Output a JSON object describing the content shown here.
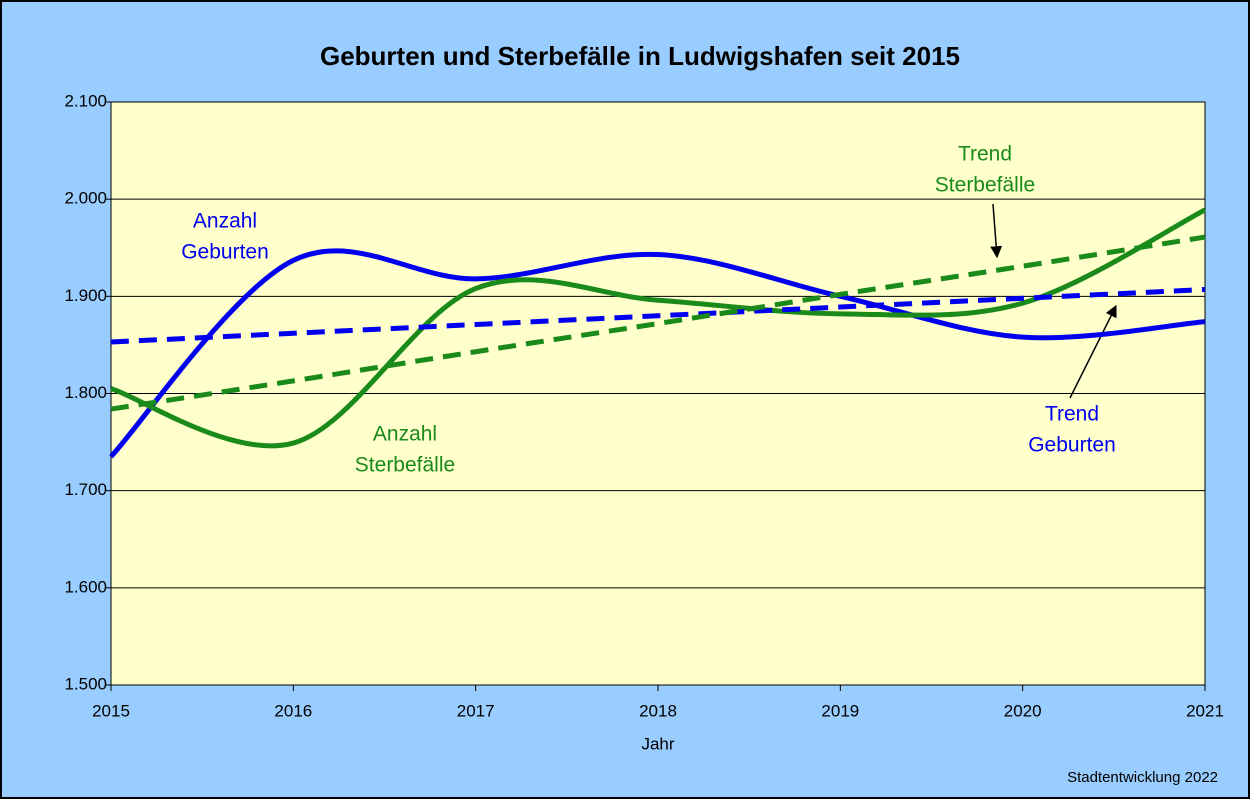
{
  "chart_data": {
    "type": "line",
    "title": "Geburten und Sterbefälle in Ludwigshafen seit 2015",
    "x_label": "Jahr",
    "source": "Stadtentwicklung 2022",
    "x": [
      2015,
      2016,
      2017,
      2018,
      2019,
      2020,
      2021
    ],
    "xlim": [
      2015,
      2021
    ],
    "xticks": [
      2015,
      2016,
      2017,
      2018,
      2019,
      2020,
      2021
    ],
    "ylim": [
      1500,
      2100
    ],
    "yticks": [
      {
        "value": 1500,
        "label": "1.500"
      },
      {
        "value": 1600,
        "label": "1.600"
      },
      {
        "value": 1700,
        "label": "1.700"
      },
      {
        "value": 1800,
        "label": "1.800"
      },
      {
        "value": 1900,
        "label": "1.900"
      },
      {
        "value": 2000,
        "label": "2.000"
      },
      {
        "value": 2100,
        "label": "2.100"
      }
    ],
    "grid": true,
    "series": [
      {
        "name": "Anzahl Geburten",
        "color": "#0000ee",
        "style": "solid",
        "values": [
          1735,
          1937,
          1918,
          1943,
          1900,
          1858,
          1874
        ]
      },
      {
        "name": "Anzahl Sterbefälle",
        "color": "#1a8a1a",
        "style": "solid",
        "values": [
          1805,
          1749,
          1908,
          1896,
          1882,
          1893,
          1989
        ]
      },
      {
        "name": "Trend Geburten",
        "color": "#0000ee",
        "style": "dashed",
        "values": [
          1853,
          1862,
          1871,
          1880,
          1889,
          1898,
          1907
        ]
      },
      {
        "name": "Trend Sterbefälle",
        "color": "#1a8a1a",
        "style": "dashed",
        "values": [
          1784,
          1813,
          1843,
          1872,
          1902,
          1931,
          1961
        ]
      }
    ],
    "annotations": [
      {
        "lines": [
          "Anzahl",
          "Geburten"
        ],
        "color": "#0000ee"
      },
      {
        "lines": [
          "Anzahl",
          "Sterbefälle"
        ],
        "color": "#1a8a1a"
      },
      {
        "lines": [
          "Trend",
          "Sterbefälle"
        ],
        "color": "#1a8a1a"
      },
      {
        "lines": [
          "Trend",
          "Geburten"
        ],
        "color": "#0000ee"
      }
    ]
  }
}
